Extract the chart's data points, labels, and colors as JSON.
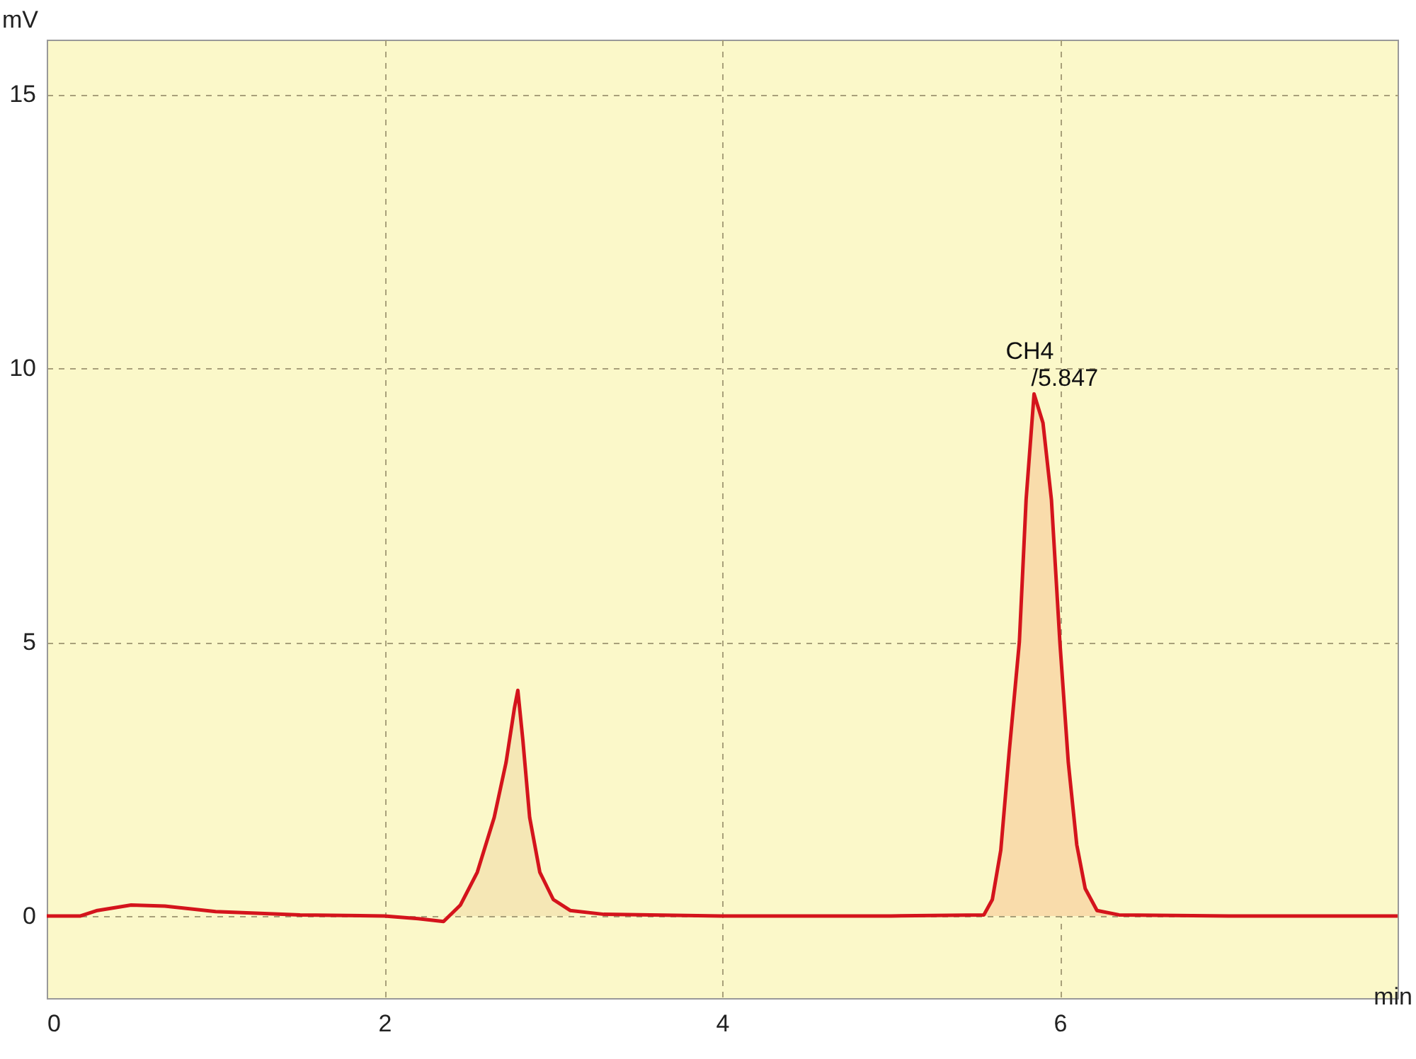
{
  "chart_data": {
    "type": "line",
    "xlabel": "min",
    "ylabel": "mV",
    "xlim": [
      0,
      8
    ],
    "ylim": [
      -1.5,
      16
    ],
    "xticks": [
      0,
      2,
      4,
      6
    ],
    "yticks": [
      0,
      5,
      10,
      15
    ],
    "grid": true,
    "marker": "none",
    "line_style": "solid",
    "series": [
      {
        "type": "area",
        "color": "#f5e7b5",
        "x": [
          2.35,
          2.45,
          2.55,
          2.65,
          2.72,
          2.77,
          2.79,
          2.82,
          2.86,
          2.92,
          3.0,
          3.1
        ],
        "values": [
          -0.1,
          0.2,
          0.8,
          1.8,
          2.8,
          3.8,
          4.12,
          3.2,
          1.8,
          0.8,
          0.3,
          0.1
        ]
      },
      {
        "type": "area",
        "color": "#f9dcab",
        "x": [
          5.55,
          5.6,
          5.65,
          5.7,
          5.76,
          5.8,
          5.847,
          5.9,
          5.95,
          6.0,
          6.05,
          6.1,
          6.15,
          6.22,
          6.35
        ],
        "values": [
          0.02,
          0.3,
          1.2,
          3.0,
          5.0,
          7.6,
          9.53,
          9.0,
          7.6,
          5.0,
          2.8,
          1.3,
          0.5,
          0.1,
          0.02
        ]
      },
      {
        "color": "#d4141c",
        "x": [
          0,
          0.2,
          0.3,
          0.5,
          0.7,
          1.0,
          1.5,
          2.0,
          2.2,
          2.35,
          2.45,
          2.55,
          2.65,
          2.72,
          2.77,
          2.79,
          2.82,
          2.86,
          2.92,
          3.0,
          3.1,
          3.3,
          4,
          5,
          5.55,
          5.6,
          5.65,
          5.7,
          5.76,
          5.8,
          5.847,
          5.9,
          5.95,
          6.0,
          6.05,
          6.1,
          6.15,
          6.22,
          6.35,
          7,
          8
        ],
        "values": [
          0,
          0,
          0.1,
          0.2,
          0.18,
          0.08,
          0.02,
          0,
          -0.05,
          -0.1,
          0.2,
          0.8,
          1.8,
          2.8,
          3.8,
          4.12,
          3.2,
          1.8,
          0.8,
          0.3,
          0.1,
          0.03,
          0,
          0,
          0.02,
          0.3,
          1.2,
          3.0,
          5.0,
          7.6,
          9.53,
          9.0,
          7.6,
          5.0,
          2.8,
          1.3,
          0.5,
          0.1,
          0.02,
          0,
          0
        ]
      }
    ],
    "annotations": [
      {
        "text": "CH4",
        "x": 5.847,
        "y": 9.53
      },
      {
        "text": "/5.847",
        "x": 5.847,
        "y": 9.53
      }
    ]
  }
}
